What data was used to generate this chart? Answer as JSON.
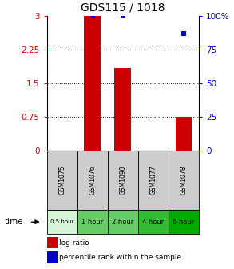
{
  "title": "GDS115 / 1018",
  "samples": [
    "GSM1075",
    "GSM1076",
    "GSM1090",
    "GSM1077",
    "GSM1078"
  ],
  "time_labels": [
    "0.5 hour",
    "1 hour",
    "2 hour",
    "4 hour",
    "6 hour"
  ],
  "time_colors": [
    "#d6f5d6",
    "#66cc66",
    "#66cc66",
    "#33bb33",
    "#00aa00"
  ],
  "log_ratios": [
    0.0,
    3.0,
    1.85,
    0.0,
    0.75
  ],
  "percentile_ranks": [
    null,
    100.0,
    100.0,
    null,
    87.0
  ],
  "bar_color": "#cc0000",
  "dot_color": "#0000cc",
  "ylim_left": [
    0,
    3
  ],
  "ylim_right": [
    0,
    100
  ],
  "yticks_left": [
    0,
    0.75,
    1.5,
    2.25,
    3.0
  ],
  "yticks_right": [
    0,
    25,
    50,
    75,
    100
  ],
  "ytick_labels_left": [
    "0",
    "0.75",
    "1.5",
    "2.25",
    "3"
  ],
  "ytick_labels_right": [
    "0",
    "25",
    "50",
    "75",
    "100%"
  ],
  "bg_color": "#ffffff",
  "sample_bg": "#cccccc",
  "legend_log_ratio": "log ratio",
  "legend_percentile": "percentile rank within the sample"
}
